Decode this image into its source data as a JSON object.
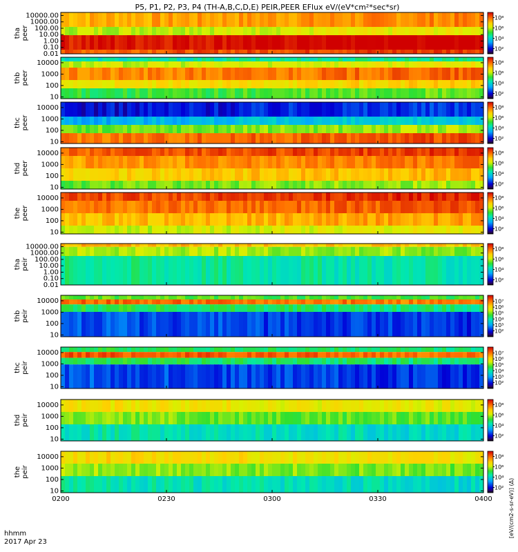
{
  "title": "P5, P1, P2, P3, P4 (TH-A,B,C,D,E) PEIR,PEER EFlux eV/(eV*cm²*sec*sr)",
  "x_label": "hhmm",
  "date_label": "2017 Apr 23",
  "colorbar_side_label": "[eV/(cm2-s-sr-eV)] (Δ)",
  "chart_data": {
    "type": "heatmap",
    "title": "P5, P1, P2, P3, P4 (TH-A,B,C,D,E) PEIR,PEER EFlux eV/(eV*cm²*sec*sr)",
    "x_ticks": [
      "0200",
      "0230",
      "0300",
      "0330",
      "0400"
    ],
    "x_range": [
      "02:00",
      "04:00"
    ],
    "x_axis_label": "hhmm",
    "date": "2017 Apr 23",
    "panels": [
      {
        "name": "tha peer",
        "label": [
          "tha",
          "peer"
        ],
        "y_ticks": [
          "10000.00",
          "1000.00",
          "100.00",
          "10.00",
          "1.00",
          "0.10",
          "0.01"
        ],
        "y_range": [
          0.01,
          30000
        ],
        "log_scale": true,
        "colorbar_ticks": [
          "10⁸",
          "10⁶",
          "10⁴",
          "10²"
        ],
        "colorbar_range": [
          10,
          1000000000.0
        ],
        "layers": [
          [
            0,
            0.35,
            0.78
          ],
          [
            0.35,
            0.55,
            0.62
          ],
          [
            0.55,
            0.9,
            0.97
          ],
          [
            0.9,
            1,
            0.88
          ]
        ]
      },
      {
        "name": "thb peer",
        "label": [
          "thb",
          "peer"
        ],
        "y_ticks": [
          "10000",
          "1000",
          "100",
          "10"
        ],
        "y_range": [
          7,
          30000
        ],
        "log_scale": true,
        "colorbar_ticks": [
          "10⁸",
          "10⁶",
          "10⁴",
          "10²"
        ],
        "colorbar_range": [
          10,
          1000000000.0
        ],
        "layers": [
          [
            0,
            0.1,
            0.4
          ],
          [
            0.1,
            0.25,
            0.62
          ],
          [
            0.25,
            0.55,
            0.82
          ],
          [
            0.55,
            0.75,
            0.68
          ],
          [
            0.75,
            1,
            0.5
          ]
        ]
      },
      {
        "name": "thc peer",
        "label": [
          "thc",
          "peer"
        ],
        "y_ticks": [
          "10000",
          "1000",
          "100",
          "10"
        ],
        "y_range": [
          7,
          30000
        ],
        "log_scale": true,
        "colorbar_ticks": [
          "10⁸",
          "10⁶",
          "10⁴",
          "10²"
        ],
        "colorbar_range": [
          10,
          1000000000.0
        ],
        "layers": [
          [
            0,
            0.35,
            0.12
          ],
          [
            0.35,
            0.55,
            0.3
          ],
          [
            0.55,
            0.75,
            0.55
          ],
          [
            0.75,
            1,
            0.85
          ]
        ]
      },
      {
        "name": "thd peer",
        "label": [
          "thd",
          "peer"
        ],
        "y_ticks": [
          "10000",
          "1000",
          "100",
          "10"
        ],
        "y_range": [
          7,
          30000
        ],
        "log_scale": true,
        "colorbar_ticks": [
          "10⁸",
          "10⁶",
          "10⁴",
          "10²"
        ],
        "colorbar_range": [
          10,
          1000000000.0
        ],
        "layers": [
          [
            0,
            0.2,
            0.88
          ],
          [
            0.2,
            0.5,
            0.8
          ],
          [
            0.5,
            0.8,
            0.72
          ],
          [
            0.8,
            1,
            0.55
          ]
        ]
      },
      {
        "name": "the peer",
        "label": [
          "the",
          "peer"
        ],
        "y_ticks": [
          "10000",
          "1000",
          "100",
          "10"
        ],
        "y_range": [
          7,
          30000
        ],
        "log_scale": true,
        "colorbar_ticks": [
          "10⁸",
          "10⁶",
          "10⁴",
          "10²"
        ],
        "colorbar_range": [
          10,
          1000000000.0
        ],
        "layers": [
          [
            0,
            0.2,
            0.9
          ],
          [
            0.2,
            0.5,
            0.84
          ],
          [
            0.5,
            0.8,
            0.75
          ],
          [
            0.8,
            1,
            0.62
          ]
        ]
      },
      {
        "name": "tha peir",
        "label": [
          "tha",
          "peir"
        ],
        "y_ticks": [
          "10000.00",
          "1000.00",
          "100.00",
          "10.00",
          "1.00",
          "0.10",
          "0.01"
        ],
        "y_range": [
          0.01,
          30000
        ],
        "log_scale": true,
        "colorbar_ticks": [
          "10⁸",
          "10⁶",
          "10⁴",
          "10²"
        ],
        "colorbar_range": [
          10,
          1000000000.0
        ],
        "layers": [
          [
            0,
            0.08,
            0.78
          ],
          [
            0.08,
            0.3,
            0.62
          ],
          [
            0.3,
            1,
            0.45
          ]
        ]
      },
      {
        "name": "thb peir",
        "label": [
          "thb",
          "peir"
        ],
        "y_ticks": [
          "10000",
          "1000",
          "100",
          "10"
        ],
        "y_range": [
          7,
          30000
        ],
        "log_scale": true,
        "colorbar_ticks": [
          "10⁷",
          "10⁶",
          "10⁵",
          "10⁴",
          "10³",
          "10²"
        ],
        "colorbar_range": [
          10,
          100000000.0
        ],
        "layers": [
          [
            0,
            0.1,
            0.55
          ],
          [
            0.1,
            0.22,
            0.88
          ],
          [
            0.22,
            0.4,
            0.5
          ],
          [
            0.4,
            1,
            0.2
          ]
        ]
      },
      {
        "name": "thc peir",
        "label": [
          "thc",
          "peir"
        ],
        "y_ticks": [
          "10000",
          "1000",
          "100",
          "10"
        ],
        "y_range": [
          7,
          30000
        ],
        "log_scale": true,
        "colorbar_ticks": [
          "10⁷",
          "10⁶",
          "10⁵",
          "10⁴",
          "10³",
          "10²"
        ],
        "colorbar_range": [
          10,
          100000000.0
        ],
        "layers": [
          [
            0,
            0.12,
            0.5
          ],
          [
            0.12,
            0.26,
            0.9
          ],
          [
            0.26,
            0.42,
            0.5
          ],
          [
            0.42,
            1,
            0.2
          ]
        ]
      },
      {
        "name": "thd peir",
        "label": [
          "thd",
          "peir"
        ],
        "y_ticks": [
          "10000",
          "1000",
          "100",
          "10"
        ],
        "y_range": [
          7,
          30000
        ],
        "log_scale": true,
        "colorbar_ticks": [
          "10⁸",
          "10⁶",
          "10⁴",
          "10²"
        ],
        "colorbar_range": [
          10,
          1000000000.0
        ],
        "layers": [
          [
            0,
            0.3,
            0.7
          ],
          [
            0.3,
            0.6,
            0.58
          ],
          [
            0.6,
            1,
            0.42
          ]
        ]
      },
      {
        "name": "the peir",
        "label": [
          "the",
          "peir"
        ],
        "y_ticks": [
          "10000",
          "1000",
          "100",
          "10"
        ],
        "y_range": [
          7,
          30000
        ],
        "log_scale": true,
        "colorbar_ticks": [
          "10⁸",
          "10⁶",
          "10⁴",
          "10²"
        ],
        "colorbar_range": [
          10,
          1000000000.0
        ],
        "layers": [
          [
            0,
            0.3,
            0.72
          ],
          [
            0.3,
            0.6,
            0.6
          ],
          [
            0.6,
            1,
            0.42
          ]
        ]
      }
    ]
  }
}
